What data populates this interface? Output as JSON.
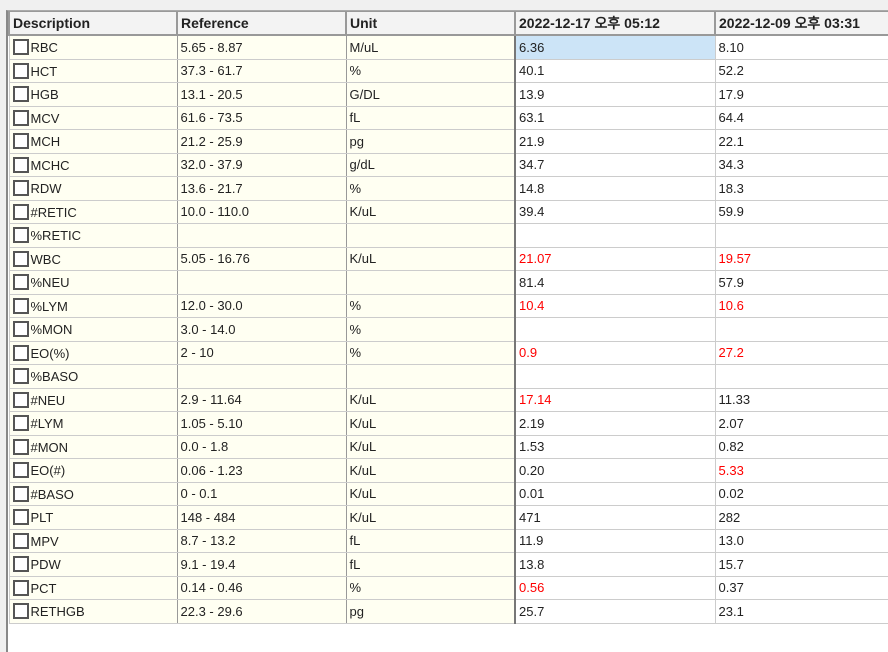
{
  "headers": [
    "Description",
    "Reference",
    "Unit",
    "2022-12-17 오후 05:12",
    "2022-12-09 오후 03:31"
  ],
  "colors": {
    "abnormal": "#ff0000",
    "selected": "#cce4f7",
    "label_bg": "#fffff2"
  },
  "rows": [
    {
      "desc": "RBC",
      "ref": "5.65 - 8.87",
      "unit": "M/uL",
      "v1": "6.36",
      "v2": "8.10",
      "f1": false,
      "f2": false,
      "selected": true
    },
    {
      "desc": "HCT",
      "ref": "37.3 - 61.7",
      "unit": "%",
      "v1": "40.1",
      "v2": "52.2"
    },
    {
      "desc": "HGB",
      "ref": "13.1 - 20.5",
      "unit": "G/DL",
      "v1": "13.9",
      "v2": "17.9"
    },
    {
      "desc": "MCV",
      "ref": "61.6 - 73.5",
      "unit": "fL",
      "v1": "63.1",
      "v2": "64.4"
    },
    {
      "desc": "MCH",
      "ref": "21.2 - 25.9",
      "unit": "pg",
      "v1": "21.9",
      "v2": "22.1"
    },
    {
      "desc": "MCHC",
      "ref": "32.0 - 37.9",
      "unit": "g/dL",
      "v1": "34.7",
      "v2": "34.3"
    },
    {
      "desc": "RDW",
      "ref": "13.6 - 21.7",
      "unit": "%",
      "v1": "14.8",
      "v2": "18.3"
    },
    {
      "desc": "#RETIC",
      "ref": "10.0 - 110.0",
      "unit": "K/uL",
      "v1": "39.4",
      "v2": "59.9"
    },
    {
      "desc": "%RETIC",
      "ref": "",
      "unit": "",
      "v1": "",
      "v2": ""
    },
    {
      "desc": "WBC",
      "ref": "5.05 - 16.76",
      "unit": "K/uL",
      "v1": "21.07",
      "v2": "19.57",
      "f1": true,
      "f2": true
    },
    {
      "desc": "%NEU",
      "ref": "",
      "unit": "",
      "v1": "81.4",
      "v2": "57.9"
    },
    {
      "desc": "%LYM",
      "ref": "12.0 - 30.0",
      "unit": "%",
      "v1": "10.4",
      "v2": "10.6",
      "f1": true,
      "f2": true
    },
    {
      "desc": "%MON",
      "ref": "3.0 - 14.0",
      "unit": "%",
      "v1": "",
      "v2": ""
    },
    {
      "desc": "EO(%)",
      "ref": "2 - 10",
      "unit": "%",
      "v1": "0.9",
      "v2": "27.2",
      "f1": true,
      "f2": true
    },
    {
      "desc": "%BASO",
      "ref": "",
      "unit": "",
      "v1": "",
      "v2": ""
    },
    {
      "desc": "#NEU",
      "ref": "2.9 - 11.64",
      "unit": "K/uL",
      "v1": "17.14",
      "v2": "11.33",
      "f1": true
    },
    {
      "desc": "#LYM",
      "ref": "1.05 - 5.10",
      "unit": "K/uL",
      "v1": "2.19",
      "v2": "2.07"
    },
    {
      "desc": "#MON",
      "ref": "0.0 - 1.8",
      "unit": "K/uL",
      "v1": "1.53",
      "v2": "0.82"
    },
    {
      "desc": "EO(#)",
      "ref": "0.06 - 1.23",
      "unit": "K/uL",
      "v1": "0.20",
      "v2": "5.33",
      "f2": true
    },
    {
      "desc": "#BASO",
      "ref": "0 - 0.1",
      "unit": "K/uL",
      "v1": "0.01",
      "v2": "0.02"
    },
    {
      "desc": "PLT",
      "ref": "148 - 484",
      "unit": "K/uL",
      "v1": "471",
      "v2": "282"
    },
    {
      "desc": "MPV",
      "ref": "8.7 - 13.2",
      "unit": "fL",
      "v1": "11.9",
      "v2": "13.0"
    },
    {
      "desc": "PDW",
      "ref": "9.1 - 19.4",
      "unit": "fL",
      "v1": "13.8",
      "v2": "15.7"
    },
    {
      "desc": "PCT",
      "ref": "0.14 - 0.46",
      "unit": "%",
      "v1": "0.56",
      "v2": "0.37",
      "f1": true
    },
    {
      "desc": "RETHGB",
      "ref": "22.3 - 29.6",
      "unit": "pg",
      "v1": "25.7",
      "v2": "23.1"
    }
  ]
}
